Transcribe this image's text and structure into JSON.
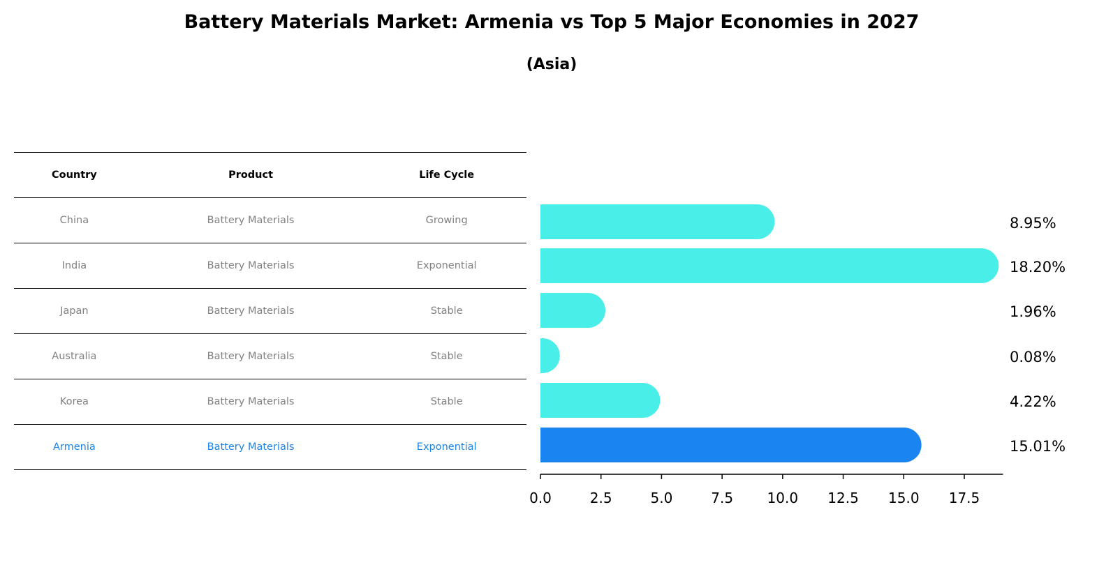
{
  "title": "Battery Materials Market: Armenia vs Top 5 Major Economies in 2027",
  "subtitle": "(Asia)",
  "table": {
    "headers": [
      "Country",
      "Product",
      "Life Cycle"
    ],
    "rows": [
      [
        "China",
        "Battery Materials",
        "Growing"
      ],
      [
        "India",
        "Battery Materials",
        "Exponential"
      ],
      [
        "Japan",
        "Battery Materials",
        "Stable"
      ],
      [
        "Australia",
        "Battery Materials",
        "Stable"
      ],
      [
        "Korea",
        "Battery Materials",
        "Stable"
      ],
      [
        "Armenia",
        "Battery Materials",
        "Exponential"
      ]
    ],
    "highlight_row": 5
  },
  "chart_data": {
    "type": "bar",
    "orientation": "horizontal",
    "categories": [
      "China",
      "India",
      "Japan",
      "Australia",
      "Korea",
      "Armenia"
    ],
    "values": [
      8.95,
      18.2,
      1.96,
      0.08,
      4.22,
      15.01
    ],
    "labels": [
      "8.95%",
      "18.20%",
      "1.96%",
      "0.08%",
      "4.22%",
      "15.01%"
    ],
    "colors": [
      "#4aeee9",
      "#4aeee9",
      "#4aeee9",
      "#4aeee9",
      "#4aeee9",
      "#1a84f0"
    ],
    "xticks": [
      "0.0",
      "2.5",
      "5.0",
      "7.5",
      "10.0",
      "12.5",
      "15.0",
      "17.5"
    ],
    "xtick_values": [
      0,
      2.5,
      5,
      7.5,
      10,
      12.5,
      15,
      17.5
    ],
    "xlim": [
      0,
      19.1
    ],
    "xlabel": "",
    "ylabel": ""
  }
}
